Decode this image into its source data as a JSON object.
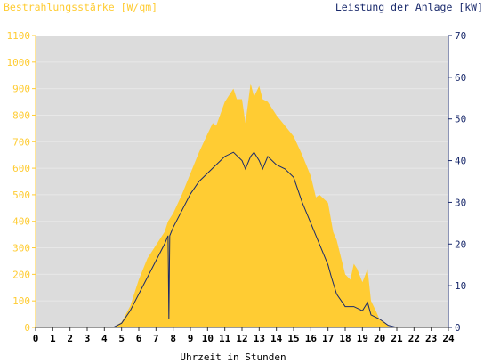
{
  "chart_data": {
    "type": "area",
    "title_left": "Bestrahlungsstärke [W/qm]",
    "title_right": "Leistung der Anlage [kW]",
    "xlabel": "Uhrzeit in Stunden",
    "xlim": [
      0,
      24
    ],
    "ylim_left": [
      0,
      1100
    ],
    "ylim_right": [
      0,
      70
    ],
    "x_ticks": [
      0,
      1,
      2,
      3,
      4,
      5,
      6,
      7,
      8,
      9,
      10,
      11,
      12,
      13,
      14,
      15,
      16,
      17,
      18,
      19,
      20,
      21,
      22,
      23,
      24
    ],
    "left_ticks": [
      0,
      100,
      200,
      300,
      400,
      500,
      600,
      700,
      800,
      900,
      1000,
      1100
    ],
    "right_ticks": [
      0,
      10,
      20,
      30,
      40,
      50,
      60,
      70
    ],
    "grid": true,
    "colors": {
      "background": "#dcdcdc",
      "irradiance": "#ffcc33",
      "power": "#1a2a6c",
      "left_axis": "#ffcc33",
      "right_axis": "#1a2a6c",
      "text": "#000000",
      "grid": "#ffffff"
    },
    "series": [
      {
        "name": "Bestrahlungsstärke [W/qm]",
        "axis": "left",
        "x": [
          0,
          4.5,
          5.0,
          5.5,
          6.0,
          6.5,
          7.0,
          7.5,
          7.7,
          8.0,
          8.5,
          9.0,
          9.5,
          10.0,
          10.3,
          10.5,
          11.0,
          11.5,
          11.7,
          12.0,
          12.2,
          12.5,
          12.7,
          13.0,
          13.2,
          13.5,
          14.0,
          14.5,
          15.0,
          15.5,
          16.0,
          16.3,
          16.5,
          17.0,
          17.3,
          17.5,
          18.0,
          18.3,
          18.5,
          18.7,
          19.0,
          19.3,
          19.5,
          19.8,
          20.0,
          20.3,
          20.5,
          21,
          24
        ],
        "y": [
          0,
          0,
          20,
          80,
          180,
          260,
          310,
          360,
          400,
          430,
          500,
          580,
          660,
          730,
          770,
          760,
          850,
          900,
          860,
          860,
          770,
          920,
          870,
          910,
          860,
          850,
          800,
          760,
          720,
          650,
          570,
          490,
          500,
          470,
          360,
          330,
          200,
          180,
          240,
          220,
          170,
          220,
          100,
          60,
          30,
          20,
          5,
          0,
          0
        ]
      },
      {
        "name": "Leistung der Anlage [kW]",
        "axis": "right",
        "x": [
          0,
          4.5,
          5.0,
          5.5,
          6.0,
          6.5,
          7.0,
          7.5,
          7.7,
          7.75,
          7.8,
          8.0,
          8.5,
          9.0,
          9.5,
          10.0,
          10.5,
          11.0,
          11.5,
          12.0,
          12.2,
          12.5,
          12.7,
          13.0,
          13.2,
          13.5,
          14.0,
          14.5,
          15.0,
          15.5,
          16.0,
          16.5,
          17.0,
          17.2,
          17.5,
          18.0,
          18.5,
          19.0,
          19.3,
          19.5,
          20.0,
          20.5,
          21,
          24
        ],
        "y": [
          0,
          0,
          1,
          4,
          8,
          12,
          16,
          20,
          22,
          2,
          22,
          24,
          28,
          32,
          35,
          37,
          39,
          41,
          42,
          40,
          38,
          41,
          42,
          40,
          38,
          41,
          39,
          38,
          36,
          30,
          25,
          20,
          15,
          12,
          8,
          5,
          5,
          4,
          6,
          3,
          2,
          0.5,
          0,
          0
        ]
      }
    ]
  }
}
